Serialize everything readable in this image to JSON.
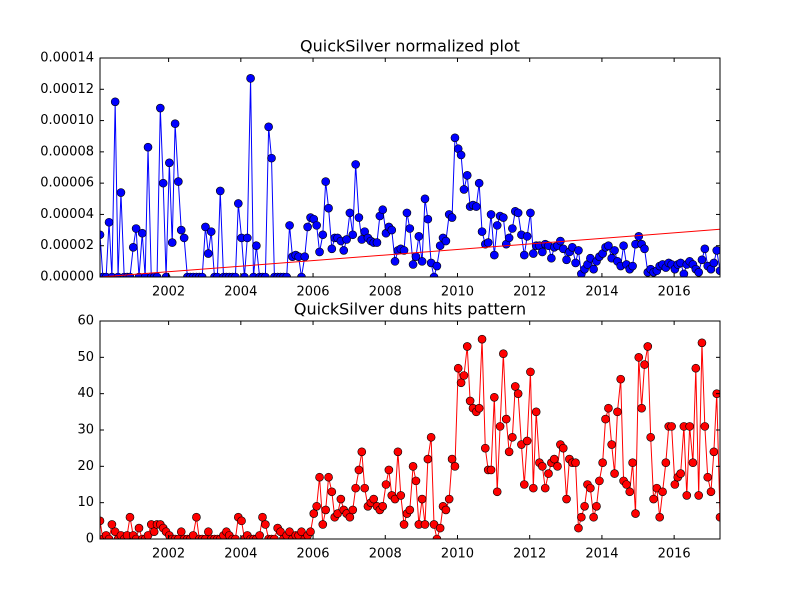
{
  "chart_data": [
    {
      "type": "line",
      "title": "QuickSilver normalized plot",
      "x": [
        2000.1,
        2000.18,
        2000.27,
        2000.35,
        2000.43,
        2000.52,
        2000.6,
        2000.68,
        2000.77,
        2000.85,
        2000.93,
        2001.02,
        2001.1,
        2001.18,
        2001.27,
        2001.35,
        2001.43,
        2001.52,
        2001.6,
        2001.68,
        2001.77,
        2001.85,
        2001.93,
        2002.02,
        2002.1,
        2002.18,
        2002.27,
        2002.35,
        2002.43,
        2002.52,
        2002.6,
        2002.68,
        2002.77,
        2002.85,
        2002.93,
        2003.02,
        2003.1,
        2003.18,
        2003.27,
        2003.35,
        2003.43,
        2003.52,
        2003.6,
        2003.68,
        2003.77,
        2003.85,
        2003.93,
        2004.02,
        2004.1,
        2004.18,
        2004.27,
        2004.35,
        2004.43,
        2004.52,
        2004.6,
        2004.68,
        2004.77,
        2004.85,
        2004.93,
        2005.02,
        2005.1,
        2005.18,
        2005.27,
        2005.35,
        2005.43,
        2005.52,
        2005.6,
        2005.68,
        2005.77,
        2005.85,
        2005.93,
        2006.02,
        2006.1,
        2006.18,
        2006.27,
        2006.35,
        2006.43,
        2006.52,
        2006.6,
        2006.68,
        2006.77,
        2006.85,
        2006.93,
        2007.02,
        2007.1,
        2007.18,
        2007.27,
        2007.35,
        2007.43,
        2007.52,
        2007.6,
        2007.68,
        2007.77,
        2007.85,
        2007.93,
        2008.02,
        2008.1,
        2008.18,
        2008.27,
        2008.35,
        2008.43,
        2008.52,
        2008.6,
        2008.68,
        2008.77,
        2008.85,
        2008.93,
        2009.02,
        2009.1,
        2009.18,
        2009.27,
        2009.35,
        2009.43,
        2009.52,
        2009.6,
        2009.68,
        2009.77,
        2009.85,
        2009.93,
        2010.02,
        2010.1,
        2010.18,
        2010.27,
        2010.35,
        2010.43,
        2010.52,
        2010.6,
        2010.68,
        2010.77,
        2010.85,
        2010.93,
        2011.02,
        2011.1,
        2011.18,
        2011.27,
        2011.35,
        2011.43,
        2011.52,
        2011.6,
        2011.68,
        2011.77,
        2011.85,
        2011.93,
        2012.02,
        2012.1,
        2012.18,
        2012.27,
        2012.35,
        2012.43,
        2012.52,
        2012.6,
        2012.68,
        2012.77,
        2012.85,
        2012.93,
        2013.02,
        2013.1,
        2013.18,
        2013.27,
        2013.35,
        2013.43,
        2013.52,
        2013.6,
        2013.68,
        2013.77,
        2013.85,
        2013.93,
        2014.02,
        2014.1,
        2014.18,
        2014.27,
        2014.35,
        2014.43,
        2014.52,
        2014.6,
        2014.68,
        2014.77,
        2014.85,
        2014.93,
        2015.02,
        2015.1,
        2015.18,
        2015.27,
        2015.35,
        2015.43,
        2015.52,
        2015.6,
        2015.68,
        2015.77,
        2015.85,
        2015.93,
        2016.02,
        2016.1,
        2016.18,
        2016.27,
        2016.35,
        2016.43,
        2016.52,
        2016.6,
        2016.68,
        2016.77,
        2016.85,
        2016.93,
        2017.02,
        2017.1,
        2017.18,
        2017.27
      ],
      "series": [
        {
          "color": "#0000ff",
          "marker": "o",
          "values": [
            2.7e-05,
            0,
            0,
            3.5e-05,
            0,
            0.000112,
            0,
            5.4e-05,
            0,
            0,
            0,
            1.9e-05,
            3.1e-05,
            0,
            2.8e-05,
            0,
            8.3e-05,
            0,
            0,
            0,
            0.000108,
            6e-05,
            0,
            7.3e-05,
            2.2e-05,
            9.8e-05,
            6.1e-05,
            3e-05,
            2.5e-05,
            0,
            0,
            0,
            0,
            0,
            0,
            3.2e-05,
            1.5e-05,
            2.9e-05,
            0,
            0,
            5.5e-05,
            0,
            0,
            0,
            0,
            0,
            4.7e-05,
            2.5e-05,
            0,
            2.5e-05,
            0.000127,
            0,
            2e-05,
            0,
            0,
            0,
            9.6e-05,
            7.6e-05,
            0,
            0,
            0,
            0,
            0,
            3.3e-05,
            1.3e-05,
            1.4e-05,
            1.3e-05,
            0,
            1.3e-05,
            3.2e-05,
            3.8e-05,
            3.7e-05,
            3.3e-05,
            1.6e-05,
            2.7e-05,
            6.1e-05,
            4.4e-05,
            1.8e-05,
            2.5e-05,
            2.5e-05,
            2.3e-05,
            1.7e-05,
            2.4e-05,
            4.1e-05,
            2.7e-05,
            7.2e-05,
            3.8e-05,
            2.4e-05,
            2.9e-05,
            2.5e-05,
            2.3e-05,
            2.2e-05,
            2.2e-05,
            3.9e-05,
            4.3e-05,
            2.8e-05,
            3.2e-05,
            3e-05,
            1e-05,
            1.7e-05,
            1.8e-05,
            1.7e-05,
            4.1e-05,
            3.1e-05,
            8e-06,
            1.3e-05,
            2.6e-05,
            1e-05,
            5e-05,
            3.7e-05,
            9e-06,
            0,
            7e-06,
            2e-05,
            2.5e-05,
            2.3e-05,
            4e-05,
            3.8e-05,
            8.9e-05,
            8.2e-05,
            7.8e-05,
            5.6e-05,
            6.5e-05,
            4.5e-05,
            4.6e-05,
            4.5e-05,
            6e-05,
            2.9e-05,
            2.1e-05,
            2.2e-05,
            4e-05,
            1.4e-05,
            3.3e-05,
            3.9e-05,
            3.8e-05,
            2.1e-05,
            2.5e-05,
            3.1e-05,
            4.2e-05,
            4.1e-05,
            2.7e-05,
            1.4e-05,
            2.6e-05,
            4.1e-05,
            1.5e-05,
            2e-05,
            2e-05,
            1.6e-05,
            2.1e-05,
            2e-05,
            1.2e-05,
            1.9e-05,
            2e-05,
            2.3e-05,
            1.8e-05,
            1.1e-05,
            1.6e-05,
            1.9e-05,
            9e-06,
            1.7e-05,
            2e-06,
            5e-06,
            8e-06,
            1.2e-05,
            5e-06,
            1e-05,
            1.3e-05,
            1.5e-05,
            1.9e-05,
            2e-05,
            1.2e-05,
            1.7e-05,
            1e-05,
            7e-06,
            2e-05,
            8e-06,
            5e-06,
            7e-06,
            2.1e-05,
            2.6e-05,
            2.1e-05,
            1.8e-05,
            3e-06,
            5e-06,
            3e-06,
            4e-06,
            7e-06,
            8e-06,
            6e-06,
            9e-06,
            8e-06,
            5e-06,
            8e-06,
            9e-06,
            2e-06,
            8e-06,
            1e-05,
            8e-06,
            5e-06,
            3e-06,
            1.1e-05,
            1.8e-05,
            7e-06,
            5e-06,
            9e-06,
            1.7e-05,
            4e-06
          ]
        },
        {
          "color": "#ff0000",
          "x": [
            2000.1,
            2017.27
          ],
          "values": [
            0,
            3.05e-05
          ]
        }
      ],
      "xlim": [
        2000.1,
        2017.27
      ],
      "ylim": [
        0,
        0.00014
      ],
      "xticks": [
        2002,
        2004,
        2006,
        2008,
        2010,
        2012,
        2014,
        2016
      ],
      "yticks": [
        {
          "value": 0,
          "label": "0.00000"
        },
        {
          "value": 2e-05,
          "label": "0.00002"
        },
        {
          "value": 4e-05,
          "label": "0.00004"
        },
        {
          "value": 6e-05,
          "label": "0.00006"
        },
        {
          "value": 8e-05,
          "label": "0.00008"
        },
        {
          "value": 0.0001,
          "label": "0.00010"
        },
        {
          "value": 0.00012,
          "label": "0.00012"
        },
        {
          "value": 0.00014,
          "label": "0.00014"
        }
      ]
    },
    {
      "type": "line",
      "title": "QuickSilver duns hits pattern",
      "x": [
        2000.1,
        2000.18,
        2000.27,
        2000.35,
        2000.43,
        2000.52,
        2000.6,
        2000.68,
        2000.77,
        2000.85,
        2000.93,
        2001.02,
        2001.1,
        2001.18,
        2001.27,
        2001.35,
        2001.43,
        2001.52,
        2001.6,
        2001.68,
        2001.77,
        2001.85,
        2001.93,
        2002.02,
        2002.1,
        2002.18,
        2002.27,
        2002.35,
        2002.43,
        2002.52,
        2002.6,
        2002.68,
        2002.77,
        2002.85,
        2002.93,
        2003.02,
        2003.1,
        2003.18,
        2003.27,
        2003.35,
        2003.43,
        2003.52,
        2003.6,
        2003.68,
        2003.77,
        2003.85,
        2003.93,
        2004.02,
        2004.1,
        2004.18,
        2004.27,
        2004.35,
        2004.43,
        2004.52,
        2004.6,
        2004.68,
        2004.77,
        2004.85,
        2004.93,
        2005.02,
        2005.1,
        2005.18,
        2005.27,
        2005.35,
        2005.43,
        2005.52,
        2005.6,
        2005.68,
        2005.77,
        2005.85,
        2005.93,
        2006.02,
        2006.1,
        2006.18,
        2006.27,
        2006.35,
        2006.43,
        2006.52,
        2006.6,
        2006.68,
        2006.77,
        2006.85,
        2006.93,
        2007.02,
        2007.1,
        2007.18,
        2007.27,
        2007.35,
        2007.43,
        2007.52,
        2007.6,
        2007.68,
        2007.77,
        2007.85,
        2007.93,
        2008.02,
        2008.1,
        2008.18,
        2008.27,
        2008.35,
        2008.43,
        2008.52,
        2008.6,
        2008.68,
        2008.77,
        2008.85,
        2008.93,
        2009.02,
        2009.1,
        2009.18,
        2009.27,
        2009.35,
        2009.43,
        2009.52,
        2009.6,
        2009.68,
        2009.77,
        2009.85,
        2009.93,
        2010.02,
        2010.1,
        2010.18,
        2010.27,
        2010.35,
        2010.43,
        2010.52,
        2010.6,
        2010.68,
        2010.77,
        2010.85,
        2010.93,
        2011.02,
        2011.1,
        2011.18,
        2011.27,
        2011.35,
        2011.43,
        2011.52,
        2011.6,
        2011.68,
        2011.77,
        2011.85,
        2011.93,
        2012.02,
        2012.1,
        2012.18,
        2012.27,
        2012.35,
        2012.43,
        2012.52,
        2012.6,
        2012.68,
        2012.77,
        2012.85,
        2012.93,
        2013.02,
        2013.1,
        2013.18,
        2013.27,
        2013.35,
        2013.43,
        2013.52,
        2013.6,
        2013.68,
        2013.77,
        2013.85,
        2013.93,
        2014.02,
        2014.1,
        2014.18,
        2014.27,
        2014.35,
        2014.43,
        2014.52,
        2014.6,
        2014.68,
        2014.77,
        2014.85,
        2014.93,
        2015.02,
        2015.1,
        2015.18,
        2015.27,
        2015.35,
        2015.43,
        2015.52,
        2015.6,
        2015.68,
        2015.77,
        2015.85,
        2015.93,
        2016.02,
        2016.1,
        2016.18,
        2016.27,
        2016.35,
        2016.43,
        2016.52,
        2016.6,
        2016.68,
        2016.77,
        2016.85,
        2016.93,
        2017.02,
        2017.1,
        2017.18,
        2017.27
      ],
      "series": [
        {
          "color": "#ff0000",
          "marker": "o",
          "values": [
            5,
            0,
            1,
            0,
            4,
            2,
            0,
            1,
            0,
            1,
            6,
            1,
            0,
            3,
            0,
            0,
            1,
            4,
            2,
            4,
            4,
            3,
            2,
            1,
            0,
            0,
            0,
            2,
            0,
            0,
            0,
            1,
            6,
            0,
            0,
            0,
            2,
            0,
            0,
            0,
            0,
            1,
            2,
            1,
            0,
            0,
            6,
            5,
            0,
            1,
            0,
            0,
            0,
            1,
            6,
            4,
            0,
            0,
            0,
            3,
            2,
            0,
            1,
            2,
            0,
            1,
            1,
            2,
            0,
            1,
            2,
            7,
            9,
            17,
            4,
            8,
            17,
            13,
            6,
            7,
            11,
            8,
            7,
            6,
            8,
            14,
            19,
            24,
            14,
            9,
            10,
            11,
            9,
            8,
            9,
            15,
            19,
            12,
            11,
            24,
            12,
            4,
            7,
            8,
            20,
            16,
            4,
            11,
            4,
            22,
            28,
            4,
            0,
            3,
            9,
            8,
            11,
            22,
            20,
            47,
            43,
            45,
            53,
            38,
            36,
            35,
            36,
            55,
            25,
            19,
            19,
            39,
            13,
            31,
            51,
            33,
            24,
            28,
            42,
            40,
            26,
            15,
            27,
            46,
            14,
            35,
            21,
            20,
            14,
            18,
            21,
            22,
            20,
            26,
            25,
            11,
            22,
            21,
            21,
            3,
            6,
            9,
            15,
            14,
            6,
            9,
            16,
            21,
            33,
            36,
            26,
            18,
            35,
            44,
            16,
            15,
            13,
            21,
            7,
            50,
            36,
            48,
            53,
            28,
            11,
            14,
            6,
            13,
            21,
            31,
            31,
            15,
            17,
            18,
            31,
            12,
            31,
            21,
            47,
            12,
            54,
            31,
            17,
            13,
            24,
            40,
            6
          ]
        }
      ],
      "xlim": [
        2000.1,
        2017.27
      ],
      "ylim": [
        0,
        60
      ],
      "xticks": [
        2002,
        2004,
        2006,
        2008,
        2010,
        2012,
        2014,
        2016
      ],
      "yticks": [
        0,
        10,
        20,
        30,
        40,
        50,
        60
      ]
    }
  ]
}
